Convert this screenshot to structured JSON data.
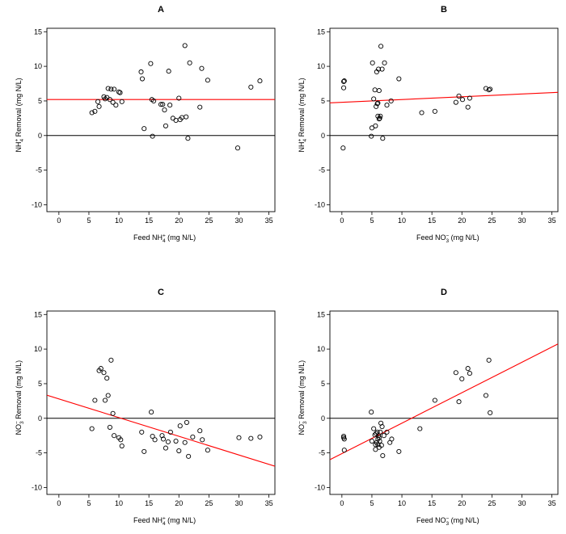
{
  "line_color": "#ff0000",
  "chart_data": [
    {
      "type": "scatter",
      "title": "A",
      "xlabel_parts": {
        "pre": "Feed NH",
        "sub": "4",
        "sup": "+",
        "post": " (mg N/L)"
      },
      "ylabel_parts": {
        "pre": "NH",
        "sub": "4",
        "sup": "+",
        "post": " Removal (mg N/L)"
      },
      "xlim": [
        -2,
        36
      ],
      "ylim": [
        -11,
        15.5
      ],
      "xticks": [
        0,
        5,
        10,
        15,
        20,
        25,
        30,
        35
      ],
      "yticks": [
        -10,
        -5,
        0,
        5,
        10,
        15
      ],
      "hline": 0,
      "fit": {
        "intercept": 5.2,
        "slope": 0.0
      },
      "x": [
        5.5,
        6.0,
        6.5,
        6.7,
        7.5,
        7.7,
        8.0,
        8.2,
        8.5,
        8.7,
        9.0,
        9.2,
        9.5,
        10.0,
        10.2,
        10.5,
        13.7,
        13.9,
        14.2,
        15.3,
        15.5,
        15.6,
        15.8,
        17.0,
        17.3,
        17.6,
        17.8,
        18.3,
        18.5,
        19.0,
        19.5,
        20.0,
        20.2,
        20.5,
        21.0,
        21.2,
        21.5,
        21.8,
        23.5,
        23.8,
        24.8,
        29.8,
        32.0,
        33.5
      ],
      "y": [
        3.3,
        3.5,
        4.9,
        4.2,
        5.6,
        5.3,
        5.5,
        6.8,
        5.2,
        6.7,
        4.8,
        6.7,
        4.4,
        6.3,
        6.2,
        4.9,
        9.2,
        8.2,
        1.0,
        10.4,
        5.2,
        -0.1,
        5.0,
        4.5,
        4.5,
        3.7,
        1.4,
        9.3,
        4.4,
        2.5,
        2.2,
        5.4,
        2.3,
        2.6,
        13.0,
        2.7,
        -0.4,
        10.5,
        4.1,
        9.7,
        8.0,
        -1.8,
        7.0,
        7.9
      ]
    },
    {
      "type": "scatter",
      "title": "B",
      "xlabel_parts": {
        "pre": "Feed NO",
        "sub": "3",
        "sup": "−",
        "post": " (mg N/L)"
      },
      "ylabel_parts": {
        "pre": "NH",
        "sub": "4",
        "sup": "+",
        "post": " Removal (mg N/L)"
      },
      "xlim": [
        -2,
        36
      ],
      "ylim": [
        -11,
        15.5
      ],
      "xticks": [
        0,
        5,
        10,
        15,
        20,
        25,
        30,
        35
      ],
      "yticks": [
        -10,
        -5,
        0,
        5,
        10,
        15
      ],
      "hline": 0,
      "fit": {
        "intercept": 4.8,
        "slope": 0.04
      },
      "x": [
        0.2,
        0.3,
        0.3,
        0.4,
        4.9,
        5.0,
        5.1,
        5.3,
        5.5,
        5.6,
        5.7,
        5.8,
        5.9,
        6.0,
        6.0,
        6.1,
        6.2,
        6.2,
        6.3,
        6.4,
        6.5,
        6.7,
        6.8,
        7.1,
        7.5,
        8.2,
        9.5,
        13.3,
        15.5,
        19.0,
        19.5,
        20.1,
        21.0,
        21.3,
        24.0,
        24.5,
        24.7
      ],
      "y": [
        -1.8,
        6.9,
        7.8,
        7.9,
        -0.1,
        1.1,
        10.5,
        5.3,
        6.6,
        1.4,
        4.2,
        9.2,
        4.6,
        4.7,
        2.8,
        9.6,
        2.4,
        6.5,
        2.5,
        2.8,
        12.9,
        9.6,
        -0.4,
        10.5,
        4.4,
        5.0,
        8.2,
        3.3,
        3.5,
        4.8,
        5.7,
        5.2,
        4.1,
        5.4,
        6.8,
        6.6,
        6.7
      ]
    },
    {
      "type": "scatter",
      "title": "C",
      "xlabel_parts": {
        "pre": "Feed NH",
        "sub": "4",
        "sup": "+",
        "post": " (mg N/L)"
      },
      "ylabel_parts": {
        "pre": "NO",
        "sub": "3",
        "sup": "−",
        "post": " Removal (mg N/L)"
      },
      "xlim": [
        -2,
        36
      ],
      "ylim": [
        -11,
        15.5
      ],
      "xticks": [
        0,
        5,
        10,
        15,
        20,
        25,
        30,
        35
      ],
      "yticks": [
        -10,
        -5,
        0,
        5,
        10,
        15
      ],
      "hline": 0,
      "fit": {
        "intercept": 2.8,
        "slope": -0.27
      },
      "x": [
        5.5,
        6.0,
        6.7,
        7.0,
        7.5,
        7.7,
        8.0,
        8.2,
        8.5,
        8.7,
        9.0,
        9.2,
        10.0,
        10.3,
        10.5,
        13.8,
        14.2,
        15.4,
        15.6,
        16.0,
        17.2,
        17.4,
        17.8,
        18.2,
        18.6,
        19.5,
        20.0,
        20.2,
        21.0,
        21.3,
        21.6,
        22.3,
        23.5,
        23.9,
        24.8,
        30.0,
        32.0,
        33.5
      ],
      "y": [
        -1.5,
        2.6,
        6.9,
        7.2,
        6.6,
        2.6,
        5.8,
        3.3,
        -1.3,
        8.4,
        0.7,
        -2.5,
        -2.8,
        -3.1,
        -4.0,
        -2.0,
        -4.8,
        0.9,
        -2.6,
        -3.1,
        -2.5,
        -3.0,
        -4.3,
        -3.4,
        -2.0,
        -3.3,
        -4.7,
        -1.1,
        -3.5,
        -0.6,
        -5.5,
        -2.7,
        -1.8,
        -3.1,
        -4.6,
        -2.8,
        -2.9,
        -2.7
      ]
    },
    {
      "type": "scatter",
      "title": "D",
      "xlabel_parts": {
        "pre": "Feed NO",
        "sub": "3",
        "sup": "−",
        "post": " (mg N/L)"
      },
      "ylabel_parts": {
        "pre": "NO",
        "sub": "3",
        "sup": "−",
        "post": " Removal (mg N/L)"
      },
      "xlim": [
        -2,
        36
      ],
      "ylim": [
        -11,
        15.5
      ],
      "xticks": [
        0,
        5,
        10,
        15,
        20,
        25,
        30,
        35
      ],
      "yticks": [
        -10,
        -5,
        0,
        5,
        10,
        15
      ],
      "hline": 0,
      "fit": {
        "intercept": -5.1,
        "slope": 0.44
      },
      "x": [
        0.3,
        0.3,
        0.4,
        0.4,
        4.9,
        5.0,
        5.3,
        5.5,
        5.6,
        5.6,
        5.7,
        5.8,
        5.9,
        6.0,
        6.0,
        6.1,
        6.2,
        6.2,
        6.3,
        6.4,
        6.5,
        6.6,
        6.7,
        6.8,
        7.0,
        7.5,
        8.0,
        8.3,
        9.5,
        13.0,
        15.5,
        19.0,
        19.5,
        20.0,
        21.0,
        21.3,
        24.0,
        24.5,
        24.7
      ],
      "y": [
        -2.8,
        -2.6,
        -4.6,
        -3.0,
        0.9,
        -3.3,
        -1.5,
        -2.4,
        -3.8,
        -4.5,
        -2.2,
        -3.5,
        -2.0,
        -3.8,
        -3.0,
        -2.5,
        -2.8,
        -4.2,
        -3.3,
        -2.0,
        -0.7,
        -3.9,
        -1.2,
        -5.4,
        -2.5,
        -2.0,
        -3.5,
        -3.0,
        -4.8,
        -1.5,
        2.6,
        6.6,
        2.4,
        5.7,
        7.2,
        6.5,
        3.3,
        8.4,
        0.8
      ]
    }
  ]
}
